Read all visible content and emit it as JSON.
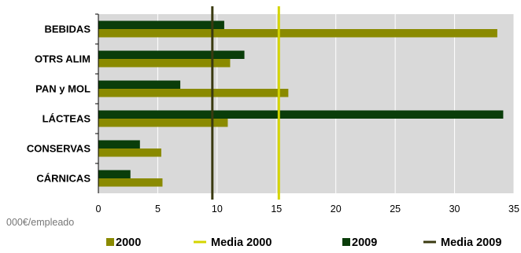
{
  "chart_data": {
    "type": "bar",
    "orientation": "horizontal",
    "categories": [
      "BEBIDAS",
      "OTRS ALIM",
      "PAN y MOL",
      "LÁCTEAS",
      "CONSERVAS",
      "CÁRNICAS"
    ],
    "series": [
      {
        "name": "2000",
        "values": [
          33.6,
          11.1,
          16.0,
          10.9,
          5.3,
          5.4
        ],
        "color": "#8a8a00"
      },
      {
        "name": "2009",
        "values": [
          10.6,
          12.3,
          6.9,
          34.1,
          3.5,
          2.7
        ],
        "color": "#0a3d0a"
      }
    ],
    "reference_lines": [
      {
        "name": "Media 2000",
        "value": 15.2,
        "color": "#d4d400"
      },
      {
        "name": "Media 2009",
        "value": 9.6,
        "color": "#3a3a10"
      }
    ],
    "xlim": [
      0,
      35
    ],
    "xticks": [
      0,
      5,
      10,
      15,
      20,
      25,
      30,
      35
    ],
    "xlabel": "000€/empleado",
    "legend": {
      "position": "bottom",
      "order": [
        "2000",
        "Media 2000",
        "2009",
        "Media 2009"
      ]
    },
    "grid": true,
    "plot_background": "#d9d9d9"
  }
}
